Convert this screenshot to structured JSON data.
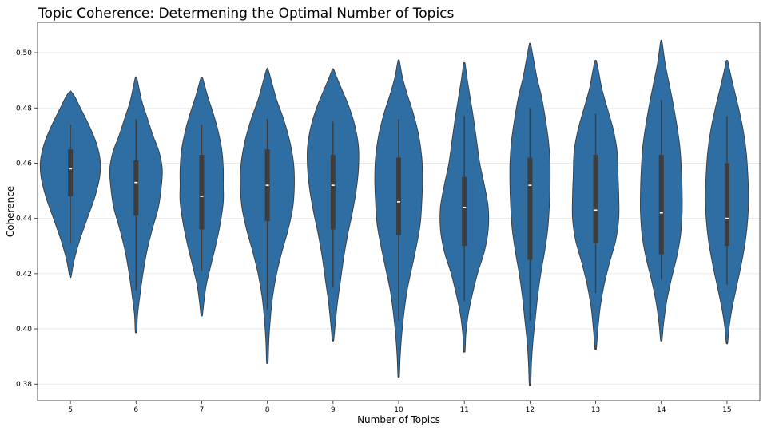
{
  "chart_data": {
    "type": "violin",
    "title": "Topic Coherence: Determening the Optimal Number of Topics",
    "xlabel": "Number of Topics",
    "ylabel": "Coherence",
    "ylim": [
      0.374,
      0.511
    ],
    "yticks": [
      "0.38",
      "0.40",
      "0.42",
      "0.44",
      "0.46",
      "0.48",
      "0.50"
    ],
    "grid": "horizontal",
    "color": "#2f6ea2",
    "categories": [
      "5",
      "6",
      "7",
      "8",
      "9",
      "10",
      "11",
      "12",
      "13",
      "14",
      "15"
    ],
    "series": [
      {
        "category": "5",
        "min": 0.419,
        "max": 0.486,
        "whisker_low": 0.431,
        "whisker_high": 0.474,
        "q1": 0.448,
        "median": 0.458,
        "q3": 0.465,
        "profile": [
          [
            0.419,
            0.01
          ],
          [
            0.425,
            0.05
          ],
          [
            0.432,
            0.12
          ],
          [
            0.44,
            0.22
          ],
          [
            0.448,
            0.32
          ],
          [
            0.455,
            0.38
          ],
          [
            0.46,
            0.39
          ],
          [
            0.465,
            0.36
          ],
          [
            0.47,
            0.3
          ],
          [
            0.475,
            0.22
          ],
          [
            0.48,
            0.13
          ],
          [
            0.484,
            0.06
          ],
          [
            0.486,
            0.01
          ]
        ]
      },
      {
        "category": "6",
        "min": 0.399,
        "max": 0.491,
        "whisker_low": 0.414,
        "whisker_high": 0.476,
        "q1": 0.441,
        "median": 0.453,
        "q3": 0.461,
        "profile": [
          [
            0.399,
            0.01
          ],
          [
            0.405,
            0.02
          ],
          [
            0.412,
            0.05
          ],
          [
            0.42,
            0.09
          ],
          [
            0.428,
            0.14
          ],
          [
            0.436,
            0.21
          ],
          [
            0.444,
            0.29
          ],
          [
            0.452,
            0.33
          ],
          [
            0.458,
            0.34
          ],
          [
            0.464,
            0.3
          ],
          [
            0.47,
            0.22
          ],
          [
            0.476,
            0.15
          ],
          [
            0.482,
            0.08
          ],
          [
            0.487,
            0.04
          ],
          [
            0.491,
            0.01
          ]
        ]
      },
      {
        "category": "7",
        "min": 0.405,
        "max": 0.491,
        "whisker_low": 0.421,
        "whisker_high": 0.474,
        "q1": 0.436,
        "median": 0.448,
        "q3": 0.463,
        "profile": [
          [
            0.405,
            0.01
          ],
          [
            0.41,
            0.03
          ],
          [
            0.416,
            0.06
          ],
          [
            0.422,
            0.11
          ],
          [
            0.43,
            0.18
          ],
          [
            0.438,
            0.24
          ],
          [
            0.446,
            0.28
          ],
          [
            0.452,
            0.28
          ],
          [
            0.458,
            0.28
          ],
          [
            0.465,
            0.26
          ],
          [
            0.472,
            0.21
          ],
          [
            0.478,
            0.15
          ],
          [
            0.484,
            0.08
          ],
          [
            0.488,
            0.04
          ],
          [
            0.491,
            0.01
          ]
        ]
      },
      {
        "category": "8",
        "min": 0.388,
        "max": 0.494,
        "whisker_low": 0.407,
        "whisker_high": 0.476,
        "q1": 0.439,
        "median": 0.452,
        "q3": 0.465,
        "profile": [
          [
            0.388,
            0.01
          ],
          [
            0.396,
            0.02
          ],
          [
            0.404,
            0.04
          ],
          [
            0.412,
            0.07
          ],
          [
            0.42,
            0.12
          ],
          [
            0.428,
            0.19
          ],
          [
            0.436,
            0.27
          ],
          [
            0.444,
            0.33
          ],
          [
            0.452,
            0.35
          ],
          [
            0.46,
            0.34
          ],
          [
            0.468,
            0.29
          ],
          [
            0.476,
            0.21
          ],
          [
            0.483,
            0.12
          ],
          [
            0.489,
            0.06
          ],
          [
            0.494,
            0.01
          ]
        ]
      },
      {
        "category": "9",
        "min": 0.396,
        "max": 0.494,
        "whisker_low": 0.415,
        "whisker_high": 0.475,
        "q1": 0.436,
        "median": 0.452,
        "q3": 0.463,
        "profile": [
          [
            0.396,
            0.01
          ],
          [
            0.402,
            0.03
          ],
          [
            0.41,
            0.06
          ],
          [
            0.418,
            0.1
          ],
          [
            0.426,
            0.14
          ],
          [
            0.434,
            0.19
          ],
          [
            0.442,
            0.25
          ],
          [
            0.45,
            0.3
          ],
          [
            0.458,
            0.33
          ],
          [
            0.466,
            0.33
          ],
          [
            0.474,
            0.28
          ],
          [
            0.481,
            0.2
          ],
          [
            0.487,
            0.11
          ],
          [
            0.491,
            0.05
          ],
          [
            0.494,
            0.01
          ]
        ]
      },
      {
        "category": "10",
        "min": 0.383,
        "max": 0.497,
        "whisker_low": 0.403,
        "whisker_high": 0.476,
        "q1": 0.434,
        "median": 0.446,
        "q3": 0.462,
        "profile": [
          [
            0.383,
            0.01
          ],
          [
            0.39,
            0.02
          ],
          [
            0.398,
            0.04
          ],
          [
            0.406,
            0.07
          ],
          [
            0.414,
            0.11
          ],
          [
            0.422,
            0.17
          ],
          [
            0.43,
            0.23
          ],
          [
            0.438,
            0.28
          ],
          [
            0.446,
            0.3
          ],
          [
            0.454,
            0.31
          ],
          [
            0.462,
            0.3
          ],
          [
            0.47,
            0.26
          ],
          [
            0.478,
            0.19
          ],
          [
            0.485,
            0.11
          ],
          [
            0.491,
            0.05
          ],
          [
            0.497,
            0.01
          ]
        ]
      },
      {
        "category": "11",
        "min": 0.392,
        "max": 0.496,
        "whisker_low": 0.41,
        "whisker_high": 0.477,
        "q1": 0.43,
        "median": 0.444,
        "q3": 0.455,
        "profile": [
          [
            0.392,
            0.01
          ],
          [
            0.398,
            0.02
          ],
          [
            0.405,
            0.05
          ],
          [
            0.412,
            0.1
          ],
          [
            0.42,
            0.17
          ],
          [
            0.428,
            0.26
          ],
          [
            0.436,
            0.31
          ],
          [
            0.444,
            0.31
          ],
          [
            0.452,
            0.26
          ],
          [
            0.46,
            0.2
          ],
          [
            0.468,
            0.16
          ],
          [
            0.476,
            0.12
          ],
          [
            0.483,
            0.08
          ],
          [
            0.49,
            0.04
          ],
          [
            0.496,
            0.01
          ]
        ]
      },
      {
        "category": "12",
        "min": 0.38,
        "max": 0.503,
        "whisker_low": 0.403,
        "whisker_high": 0.48,
        "q1": 0.425,
        "median": 0.452,
        "q3": 0.462,
        "profile": [
          [
            0.38,
            0.01
          ],
          [
            0.388,
            0.02
          ],
          [
            0.396,
            0.04
          ],
          [
            0.404,
            0.07
          ],
          [
            0.412,
            0.1
          ],
          [
            0.42,
            0.14
          ],
          [
            0.428,
            0.19
          ],
          [
            0.436,
            0.23
          ],
          [
            0.444,
            0.25
          ],
          [
            0.452,
            0.26
          ],
          [
            0.46,
            0.26
          ],
          [
            0.468,
            0.24
          ],
          [
            0.476,
            0.2
          ],
          [
            0.484,
            0.15
          ],
          [
            0.491,
            0.09
          ],
          [
            0.497,
            0.05
          ],
          [
            0.503,
            0.01
          ]
        ]
      },
      {
        "category": "13",
        "min": 0.393,
        "max": 0.497,
        "whisker_low": 0.413,
        "whisker_high": 0.478,
        "q1": 0.431,
        "median": 0.443,
        "q3": 0.463,
        "profile": [
          [
            0.393,
            0.01
          ],
          [
            0.4,
            0.03
          ],
          [
            0.408,
            0.06
          ],
          [
            0.416,
            0.11
          ],
          [
            0.424,
            0.18
          ],
          [
            0.432,
            0.26
          ],
          [
            0.44,
            0.3
          ],
          [
            0.448,
            0.3
          ],
          [
            0.456,
            0.29
          ],
          [
            0.464,
            0.28
          ],
          [
            0.472,
            0.23
          ],
          [
            0.48,
            0.15
          ],
          [
            0.487,
            0.08
          ],
          [
            0.493,
            0.04
          ],
          [
            0.497,
            0.01
          ]
        ]
      },
      {
        "category": "14",
        "min": 0.396,
        "max": 0.504,
        "whisker_low": 0.418,
        "whisker_high": 0.483,
        "q1": 0.427,
        "median": 0.442,
        "q3": 0.463,
        "profile": [
          [
            0.396,
            0.01
          ],
          [
            0.402,
            0.03
          ],
          [
            0.41,
            0.07
          ],
          [
            0.418,
            0.13
          ],
          [
            0.426,
            0.2
          ],
          [
            0.434,
            0.25
          ],
          [
            0.442,
            0.27
          ],
          [
            0.45,
            0.27
          ],
          [
            0.458,
            0.26
          ],
          [
            0.466,
            0.24
          ],
          [
            0.474,
            0.2
          ],
          [
            0.482,
            0.15
          ],
          [
            0.489,
            0.1
          ],
          [
            0.496,
            0.05
          ],
          [
            0.504,
            0.01
          ]
        ]
      },
      {
        "category": "15",
        "min": 0.395,
        "max": 0.497,
        "whisker_low": 0.416,
        "whisker_high": 0.477,
        "q1": 0.43,
        "median": 0.44,
        "q3": 0.46,
        "profile": [
          [
            0.395,
            0.01
          ],
          [
            0.401,
            0.03
          ],
          [
            0.408,
            0.07
          ],
          [
            0.416,
            0.13
          ],
          [
            0.424,
            0.19
          ],
          [
            0.432,
            0.24
          ],
          [
            0.44,
            0.27
          ],
          [
            0.448,
            0.28
          ],
          [
            0.456,
            0.27
          ],
          [
            0.464,
            0.25
          ],
          [
            0.472,
            0.21
          ],
          [
            0.48,
            0.15
          ],
          [
            0.487,
            0.09
          ],
          [
            0.493,
            0.04
          ],
          [
            0.497,
            0.01
          ]
        ]
      }
    ]
  }
}
